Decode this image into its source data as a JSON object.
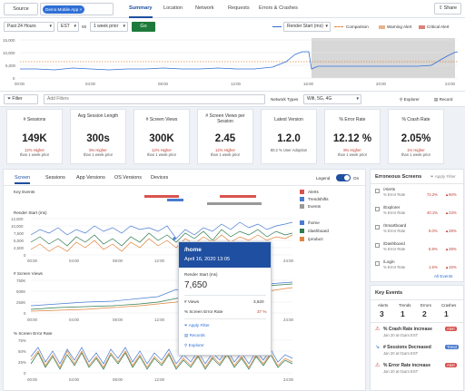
{
  "topbar": {
    "source_label": "Source",
    "app_chip": "Demo Mobile App",
    "tabs": [
      "Summary",
      "Location",
      "Network",
      "Requests",
      "Errors & Crashes"
    ],
    "share_label": "Share"
  },
  "filters": {
    "time_range": "Past 24 Hours",
    "timezone": "EST",
    "vs_label": "vs",
    "compare": "1 week prior",
    "go_label": "Go",
    "metric_select": "Render Start (ms)",
    "legend": {
      "comparison": "Comparison",
      "warning": "Warning Alert",
      "critical": "Critical Alert"
    }
  },
  "top_chart": {
    "y_ticks": [
      "15,000",
      "10,000",
      "5,000",
      "0"
    ],
    "x_ticks": [
      "00:00",
      "04:00",
      "08:00",
      "12:00",
      "16:00",
      "20:00",
      "24:00"
    ]
  },
  "filterbar": {
    "filter_label": "Filter",
    "add_filters_placeholder": "Add Filters",
    "network_label": "Network Types",
    "network_value": "Wifi, 5G, 4G",
    "explorer_label": "Explorer",
    "record_label": "Record"
  },
  "kpis": [
    {
      "title": "# Sessions",
      "value": "149K",
      "sub1": "12% Higher",
      "sub2": "than 1 week prior"
    },
    {
      "title": "Avg Session Length",
      "value": "300s",
      "sub1": "5% Higher",
      "sub2": "than 1 week prior"
    },
    {
      "title": "# Screen Views",
      "value": "300K",
      "sub1": "12% Higher",
      "sub2": "than 1 week prior"
    },
    {
      "title": "# Screen Views per Session",
      "value": "2.45",
      "sub1": "12% Higher",
      "sub2": "than 1 week prior"
    },
    {
      "title": "Latest Version",
      "value": "1.2.0",
      "sub1": "",
      "sub2": "80.2 % User Adoption"
    },
    {
      "title": "% Error Rate",
      "value": "12.12 %",
      "sub1": "8% Higher",
      "sub2": "than 1 week prior"
    },
    {
      "title": "% Crash Rate",
      "value": "2.05%",
      "sub1": "1% Higher",
      "sub2": "than 1 week prior"
    }
  ],
  "subtabs": [
    "Screen",
    "Sessions",
    "App Versions",
    "OS Versions",
    "Devices"
  ],
  "legend_toggle": {
    "label": "Legend",
    "state": "On"
  },
  "charts": {
    "key_events": "Key Events",
    "render_start": "Render Start (ms)",
    "screen_views": "# Screen Views",
    "error_rate": "% Screen Error Rate",
    "rs_y": [
      "12,500",
      "10,000",
      "7,500",
      "5,000",
      "2,500",
      "0"
    ],
    "sv_y": [
      "750K",
      "500K",
      "250K",
      "0"
    ],
    "er_y": [
      "75%",
      "50%",
      "25%",
      "0"
    ],
    "x_ticks": [
      "00:00",
      "04:00",
      "08:00",
      "12:00",
      "16:00",
      "20:00",
      "24:00"
    ]
  },
  "legend_items": {
    "events": [
      "Alerts",
      "Trendshifts",
      "Events"
    ],
    "screens": [
      "/home",
      "/dashboard",
      "/product"
    ]
  },
  "tooltip": {
    "screen": "/home",
    "date": "April 16, 2020 13:05",
    "metric_label": "Render Start (ms)",
    "metric_value": "7,650",
    "views_label": "# Views",
    "views_value": "3,620",
    "err_label": "% Screen Error Rate",
    "err_value": "37 %",
    "actions": [
      "Apply Filter",
      "Records",
      "Explorer"
    ]
  },
  "erroneous": {
    "title": "Erroneous Screens",
    "apply_filter": "Apply Filter",
    "rows": [
      {
        "name": "/Alerts",
        "label": "% Error Rate",
        "value": "72.2%",
        "delta": "60%"
      },
      {
        "name": "/Explorer",
        "label": "% Error Rate",
        "value": "40.1%",
        "delta": "23%"
      },
      {
        "name": "/Smartboard",
        "label": "% Error Rate",
        "value": "9.0%",
        "delta": "28%"
      },
      {
        "name": "/Dashboard",
        "label": "% Error Rate",
        "value": "6.8%",
        "delta": "28%"
      },
      {
        "name": "/Login",
        "label": "% Error Rate",
        "value": "1.5%",
        "delta": "15%"
      }
    ],
    "all_events": "All Events"
  },
  "key_events": {
    "title": "Key Events",
    "cols": [
      "Alerts",
      "Trends",
      "Errors",
      "Crashes"
    ],
    "counts": [
      "3",
      "1",
      "2",
      "1"
    ],
    "items": [
      {
        "title": "% Crash Rate increase",
        "badge": "Alert",
        "time": "Jan 20 at 01am EST"
      },
      {
        "title": "# Sessions Decreased",
        "badge": "Trend",
        "time": "Jan 20 at 01am EST"
      },
      {
        "title": "% Error Rate increase",
        "badge": "Alert",
        "time": "Jan 20 at 01am EST"
      }
    ]
  },
  "colors": {
    "primary": "#1f4fa0",
    "accent_blue": "#2f6fd6",
    "go_green": "#1e7a3c",
    "alert_red": "#d9534f",
    "warning_orange": "#e0853e",
    "trend_blue": "#4a7bd1"
  }
}
